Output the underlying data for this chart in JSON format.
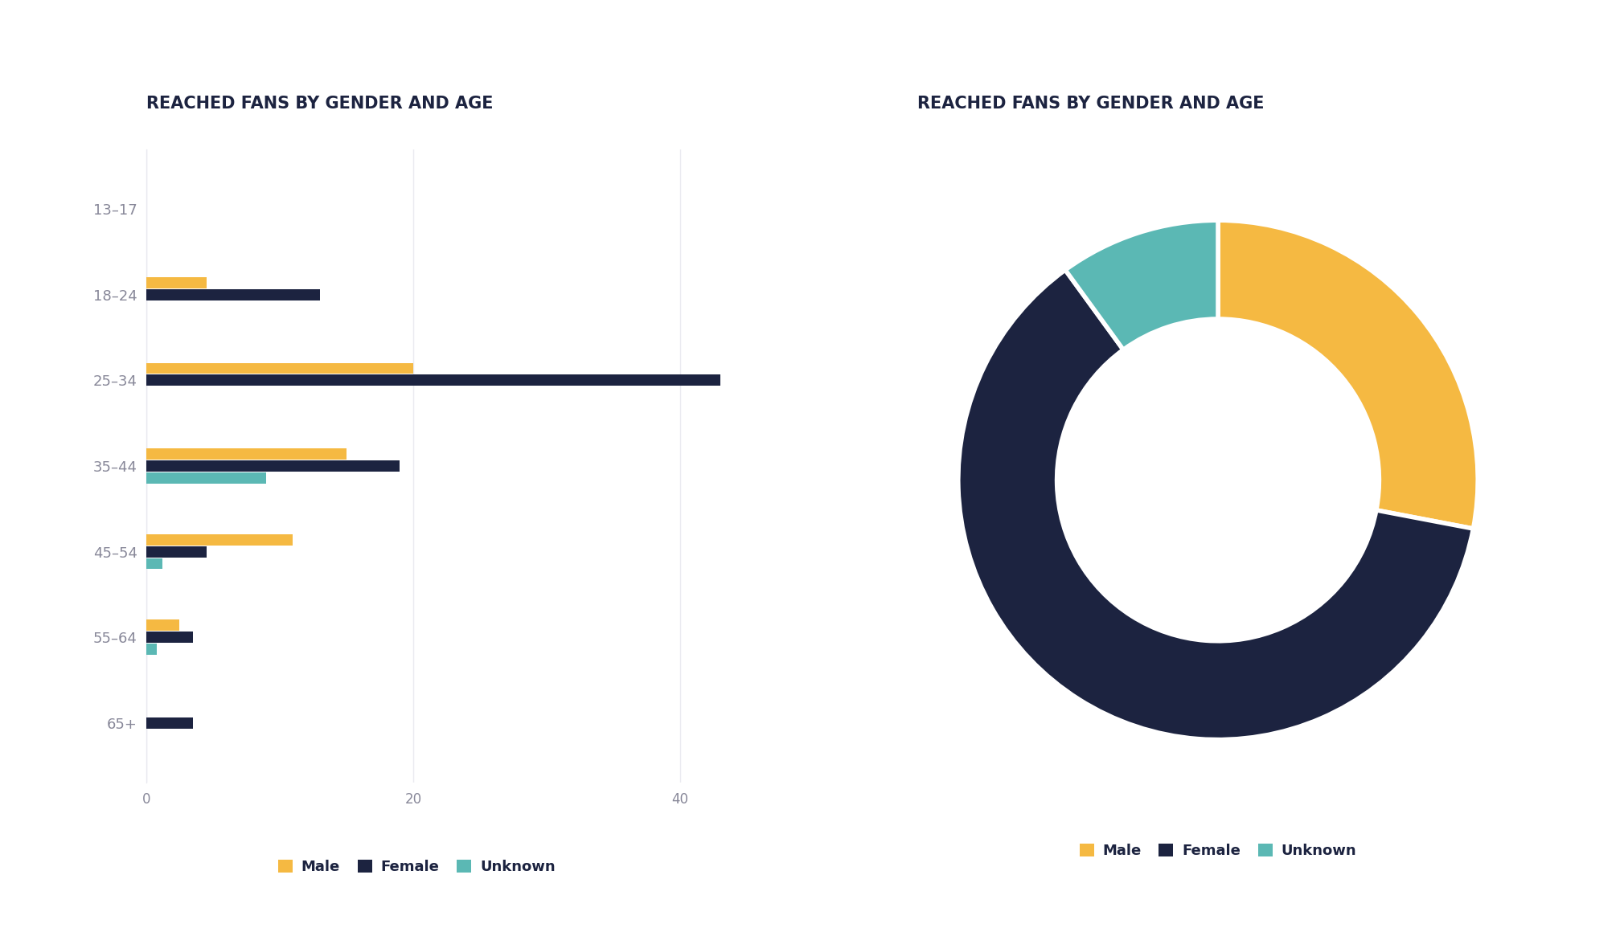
{
  "title": "REACHED FANS BY GENDER AND AGE",
  "age_groups": [
    "13–17",
    "18–24",
    "25–34",
    "35–44",
    "45–54",
    "55–64",
    "65+"
  ],
  "male_values": [
    0.0,
    4.5,
    20.0,
    15.0,
    11.0,
    2.5,
    0.0
  ],
  "female_values": [
    0.0,
    13.0,
    43.0,
    19.0,
    4.5,
    3.5,
    3.5
  ],
  "unknown_values": [
    0.0,
    0.0,
    0.0,
    9.0,
    1.2,
    0.8,
    0.0
  ],
  "donut_values": [
    28,
    62,
    10
  ],
  "donut_labels": [
    "Male",
    "Female",
    "Unknown"
  ],
  "colors": {
    "male": "#F5B942",
    "female": "#1C2340",
    "unknown": "#5BB8B4",
    "background": "#FFFFFF",
    "outer_bg_left": "#B8B8CC",
    "outer_bg_right": "#D0C8C0",
    "grid": "#EAEAF0",
    "text": "#888899",
    "title": "#1C2340"
  },
  "xlim": [
    0,
    45
  ],
  "xticks": [
    0,
    20,
    40
  ]
}
